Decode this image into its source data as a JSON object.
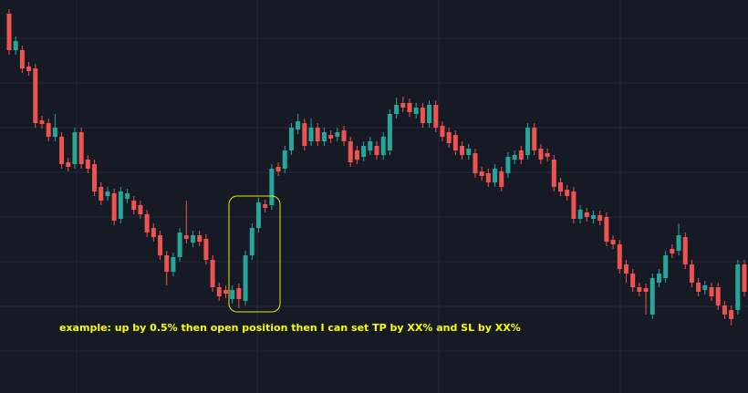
{
  "chart_data": {
    "type": "candlestick",
    "annotation": "example: up by 0.5% then open position then I can set TP by XX% and SL by XX%",
    "up_color": "#26a69a",
    "down_color": "#ef5350",
    "annotation_color": "#ffff00",
    "ylim": [
      0,
      431
    ],
    "open": [
      416,
      376,
      376,
      358,
      356,
      299,
      296,
      281,
      281,
      253,
      251,
      286,
      256,
      251,
      226,
      216,
      219,
      191,
      213,
      211,
      206,
      196,
      181,
      173,
      151,
      133,
      149,
      173,
      165,
      173,
      169,
      146,
      116,
      113,
      103,
      115,
      101,
      151,
      181,
      207,
      206,
      248,
      246,
      266,
      289,
      296,
      276,
      291,
      276,
      283,
      281,
      288,
      276,
      266,
      259,
      266,
      271,
      261,
      266,
      306,
      318,
      318,
      306,
      313,
      296,
      316,
      293,
      286,
      283,
      271,
      261,
      263,
      243,
      241,
      231,
      243,
      241,
      256,
      266,
      261,
      291,
      268,
      263,
      256,
      231,
      223,
      221,
      191,
      198,
      191,
      195,
      193,
      168,
      163,
      141,
      131,
      116,
      115,
      86,
      121,
      126,
      158,
      156,
      171,
      141,
      121,
      113,
      116,
      116,
      96,
      91,
      91,
      141
    ],
    "high": [
      421,
      391,
      381,
      363,
      361,
      304,
      301,
      306,
      286,
      258,
      291,
      291,
      261,
      256,
      231,
      226,
      224,
      226,
      224,
      216,
      211,
      201,
      186,
      178,
      156,
      154,
      181,
      211,
      178,
      178,
      174,
      151,
      121,
      118,
      118,
      120,
      156,
      186,
      214,
      212,
      251,
      253,
      271,
      296,
      306,
      301,
      301,
      296,
      291,
      288,
      291,
      293,
      281,
      271,
      276,
      281,
      276,
      286,
      311,
      324,
      325,
      323,
      318,
      318,
      321,
      321,
      298,
      291,
      288,
      276,
      273,
      268,
      248,
      246,
      251,
      248,
      264,
      266,
      271,
      296,
      296,
      273,
      268,
      261,
      236,
      228,
      226,
      206,
      203,
      200,
      200,
      198,
      173,
      168,
      146,
      136,
      121,
      120,
      131,
      136,
      156,
      163,
      186,
      176,
      146,
      126,
      123,
      121,
      121,
      101,
      96,
      146,
      146
    ],
    "low": [
      371,
      371,
      351,
      348,
      291,
      290,
      276,
      276,
      246,
      243,
      246,
      246,
      241,
      216,
      206,
      211,
      184,
      186,
      208,
      196,
      191,
      171,
      166,
      146,
      118,
      128,
      144,
      164,
      160,
      161,
      141,
      111,
      101,
      104,
      98,
      93,
      96,
      146,
      176,
      198,
      201,
      238,
      241,
      261,
      284,
      266,
      271,
      271,
      271,
      274,
      276,
      271,
      248,
      251,
      254,
      261,
      256,
      256,
      261,
      301,
      308,
      303,
      301,
      291,
      291,
      286,
      276,
      269,
      261,
      256,
      256,
      236,
      233,
      226,
      226,
      221,
      236,
      251,
      251,
      256,
      261,
      251,
      254,
      221,
      216,
      211,
      186,
      186,
      188,
      186,
      184,
      161,
      158,
      131,
      121,
      111,
      106,
      86,
      81,
      116,
      121,
      148,
      151,
      136,
      116,
      106,
      108,
      101,
      91,
      81,
      74,
      86,
      106
    ],
    "close": [
      376,
      386,
      356,
      353,
      296,
      295,
      281,
      291,
      251,
      248,
      286,
      251,
      246,
      221,
      211,
      221,
      189,
      221,
      219,
      201,
      196,
      176,
      171,
      151,
      133,
      149,
      176,
      169,
      173,
      166,
      146,
      116,
      106,
      109,
      113,
      103,
      151,
      181,
      209,
      203,
      246,
      243,
      266,
      291,
      298,
      271,
      291,
      276,
      286,
      279,
      286,
      276,
      253,
      256,
      271,
      276,
      261,
      281,
      306,
      316,
      313,
      308,
      313,
      296,
      316,
      291,
      281,
      274,
      266,
      261,
      268,
      241,
      238,
      231,
      246,
      226,
      259,
      261,
      256,
      291,
      266,
      256,
      259,
      226,
      221,
      216,
      191,
      201,
      193,
      195,
      189,
      166,
      163,
      136,
      131,
      116,
      111,
      111,
      126,
      131,
      151,
      153,
      173,
      141,
      121,
      111,
      118,
      106,
      96,
      86,
      81,
      141,
      111
    ]
  }
}
